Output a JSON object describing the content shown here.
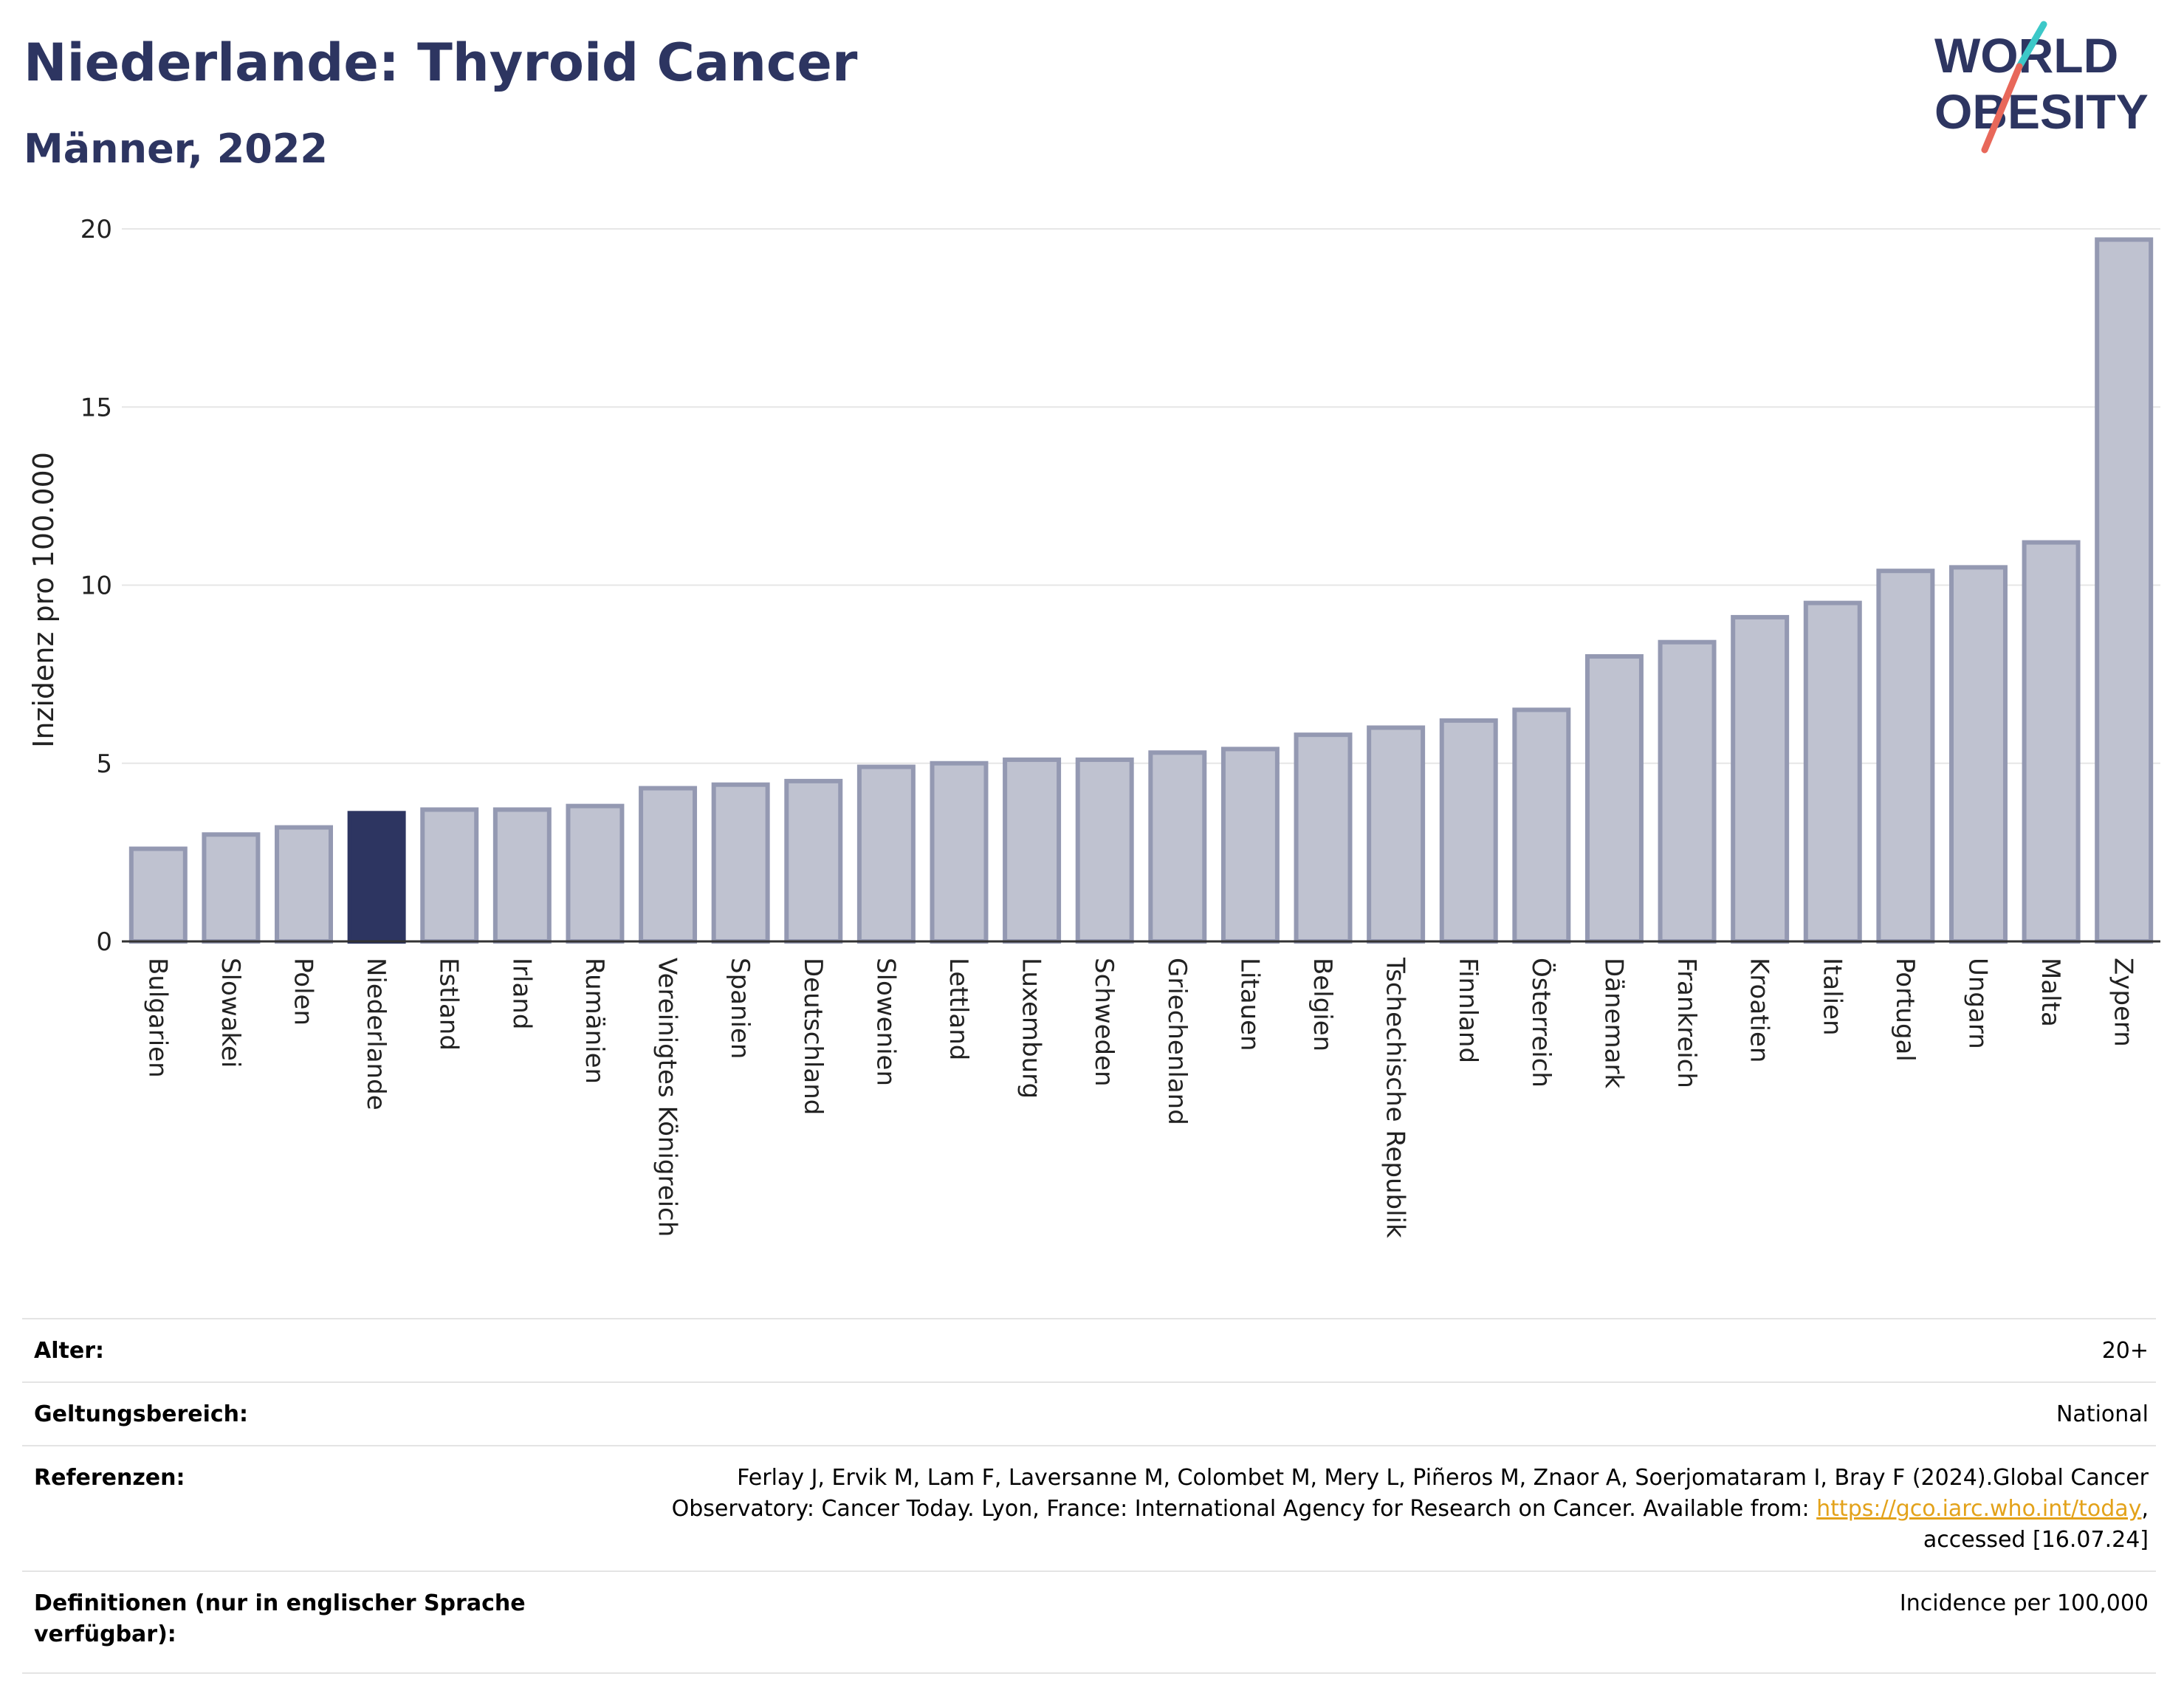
{
  "header": {
    "title": "Niederlande: Thyroid Cancer",
    "subtitle": "Männer, 2022"
  },
  "logo": {
    "line1": "WORLD",
    "line2": "OBESITY",
    "slash_colors": [
      "#3cc8c8",
      "#e8685a"
    ]
  },
  "colors": {
    "title": "#2d3561",
    "highlight": "#2d3561",
    "bar_fill": "#bfc2d0",
    "bar_stroke": "#9499b2",
    "grid": "#e6e6e6"
  },
  "chart_data": {
    "type": "bar",
    "title": "Niederlande: Thyroid Cancer",
    "subtitle": "Männer, 2022",
    "ylabel": "Inzidenz pro 100.000",
    "xlabel": "",
    "ylim": [
      0,
      20
    ],
    "yticks": [
      0,
      5,
      10,
      15,
      20
    ],
    "highlight": "Niederlande",
    "grid": true,
    "categories": [
      "Bulgarien",
      "Slowakei",
      "Polen",
      "Niederlande",
      "Estland",
      "Irland",
      "Rumänien",
      "Vereinigtes Königreich",
      "Spanien",
      "Deutschland",
      "Slowenien",
      "Lettland",
      "Luxemburg",
      "Schweden",
      "Griechenland",
      "Litauen",
      "Belgien",
      "Tschechische Republik",
      "Finnland",
      "Österreich",
      "Dänemark",
      "Frankreich",
      "Kroatien",
      "Italien",
      "Portugal",
      "Ungarn",
      "Malta",
      "Zypern"
    ],
    "values": [
      2.6,
      3.0,
      3.2,
      3.6,
      3.7,
      3.7,
      3.8,
      4.3,
      4.4,
      4.5,
      4.9,
      5.0,
      5.1,
      5.1,
      5.3,
      5.4,
      5.8,
      6.0,
      6.2,
      6.5,
      8.0,
      8.4,
      9.1,
      9.5,
      10.4,
      10.5,
      11.2,
      19.7
    ]
  },
  "info": {
    "rows": [
      {
        "label": "Alter:",
        "value": "20+"
      },
      {
        "label": "Geltungsbereich:",
        "value": "National"
      },
      {
        "label": "Referenzen:",
        "value_pre": "Ferlay J, Ervik M, Lam F, Laversanne M, Colombet M, Mery L, Piñeros M, Znaor A, Soerjomataram I, Bray F (2024).Global Cancer Observatory: Cancer Today. Lyon, France: International Agency for Research on Cancer. Available from: ",
        "link": "https://gco.iarc.who.int/today",
        "value_post": ", accessed [16.07.24]"
      },
      {
        "label": "Definitionen (nur in englischer Sprache verfügbar):",
        "value": "Incidence per 100,000"
      }
    ]
  }
}
